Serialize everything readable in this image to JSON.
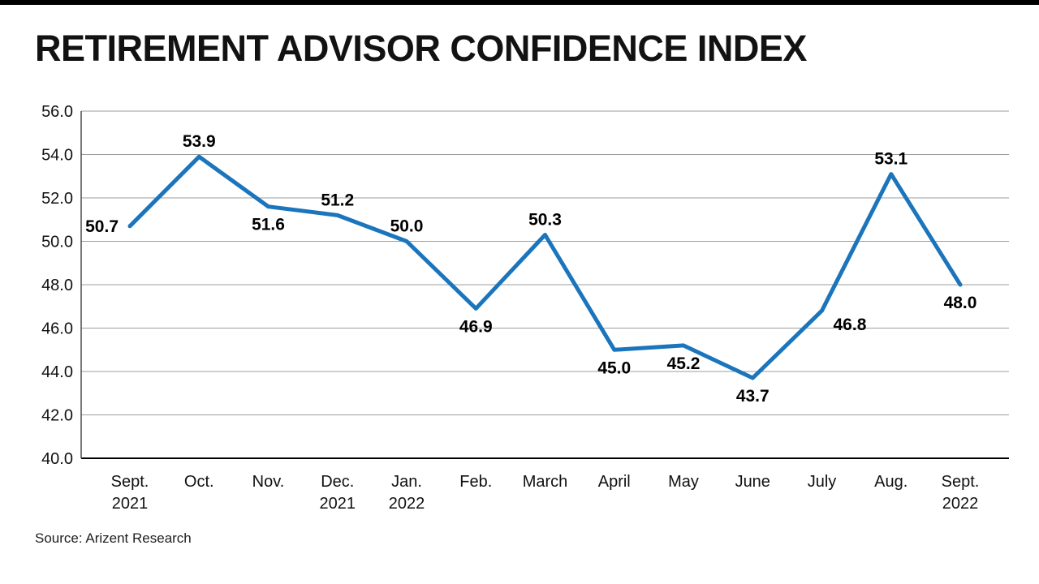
{
  "chart_data": {
    "type": "line",
    "title": "RETIREMENT ADVISOR CONFIDENCE INDEX",
    "source": "Source: Arizent Research",
    "categories": [
      "Sept.\n2021",
      "Oct.",
      "Nov.",
      "Dec.\n2021",
      "Jan.\n2022",
      "Feb.",
      "March",
      "April",
      "May",
      "June",
      "July",
      "Aug.",
      "Sept.\n2022"
    ],
    "values": [
      50.7,
      53.9,
      51.6,
      51.2,
      50.0,
      46.9,
      50.3,
      45.0,
      45.2,
      43.7,
      46.8,
      53.1,
      48.0
    ],
    "ylim": [
      40.0,
      56.0
    ],
    "ytick_step": 2.0,
    "ytick_labels": [
      "40.0",
      "42.0",
      "44.0",
      "46.0",
      "48.0",
      "50.0",
      "52.0",
      "54.0",
      "56.0"
    ],
    "grid": true,
    "legend": "none",
    "line_color": "#1b75bc",
    "label_positions": [
      "left",
      "above",
      "below",
      "above",
      "above",
      "below",
      "above",
      "below",
      "below",
      "below",
      "right",
      "above",
      "below"
    ]
  }
}
